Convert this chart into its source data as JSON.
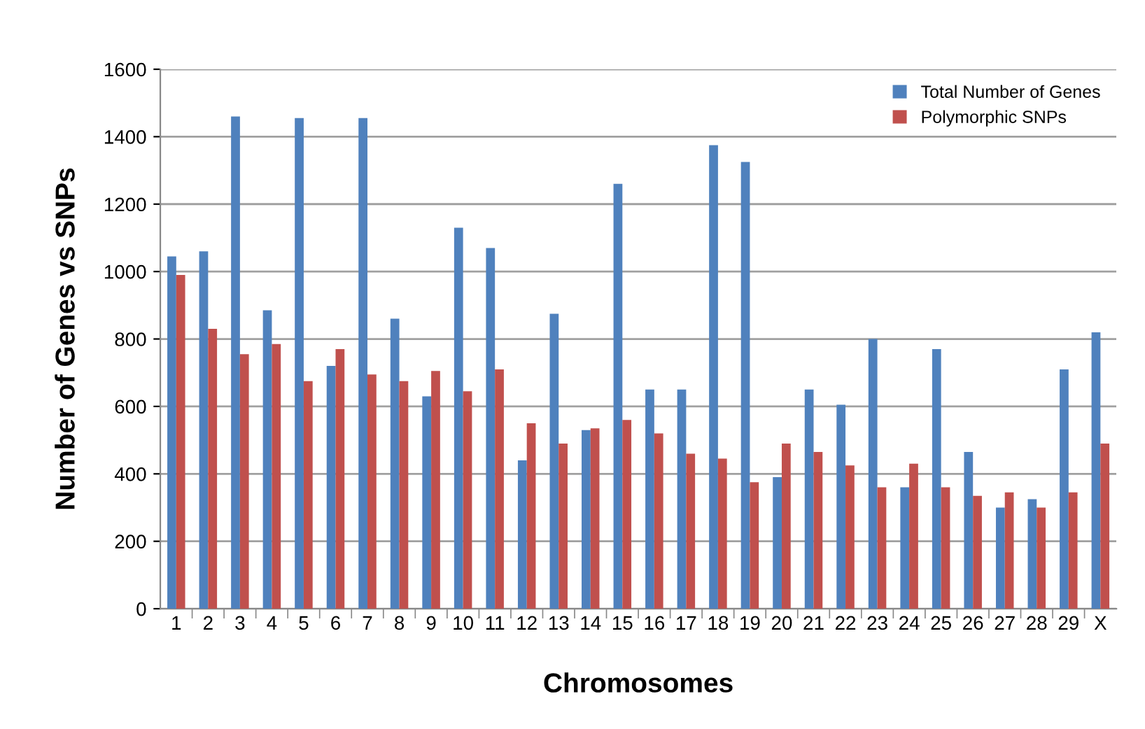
{
  "chart_data": {
    "type": "bar",
    "xlabel": "Chromosomes",
    "ylabel": "Number of Genes vs SNPs",
    "categories": [
      "1",
      "2",
      "3",
      "4",
      "5",
      "6",
      "7",
      "8",
      "9",
      "10",
      "11",
      "12",
      "13",
      "14",
      "15",
      "16",
      "17",
      "18",
      "19",
      "20",
      "21",
      "22",
      "23",
      "24",
      "25",
      "26",
      "27",
      "28",
      "29",
      "X"
    ],
    "series": [
      {
        "name": "Total Number of Genes",
        "color": "#4f81bd",
        "values": [
          1045,
          1060,
          1460,
          885,
          1455,
          720,
          1455,
          860,
          630,
          1130,
          1070,
          440,
          875,
          530,
          1260,
          650,
          650,
          1375,
          1325,
          390,
          650,
          605,
          800,
          360,
          770,
          465,
          300,
          325,
          710,
          820
        ]
      },
      {
        "name": "Polymorphic SNPs",
        "color": "#c0504d",
        "values": [
          990,
          830,
          755,
          785,
          675,
          770,
          695,
          675,
          705,
          645,
          710,
          550,
          490,
          535,
          560,
          520,
          460,
          445,
          375,
          490,
          465,
          425,
          360,
          430,
          360,
          335,
          345,
          300,
          345,
          490
        ]
      }
    ],
    "ylim": [
      0,
      1600
    ],
    "yticks": [
      0,
      200,
      400,
      600,
      800,
      1000,
      1200,
      1400,
      1600
    ],
    "grid": "y",
    "legend": "top right"
  }
}
